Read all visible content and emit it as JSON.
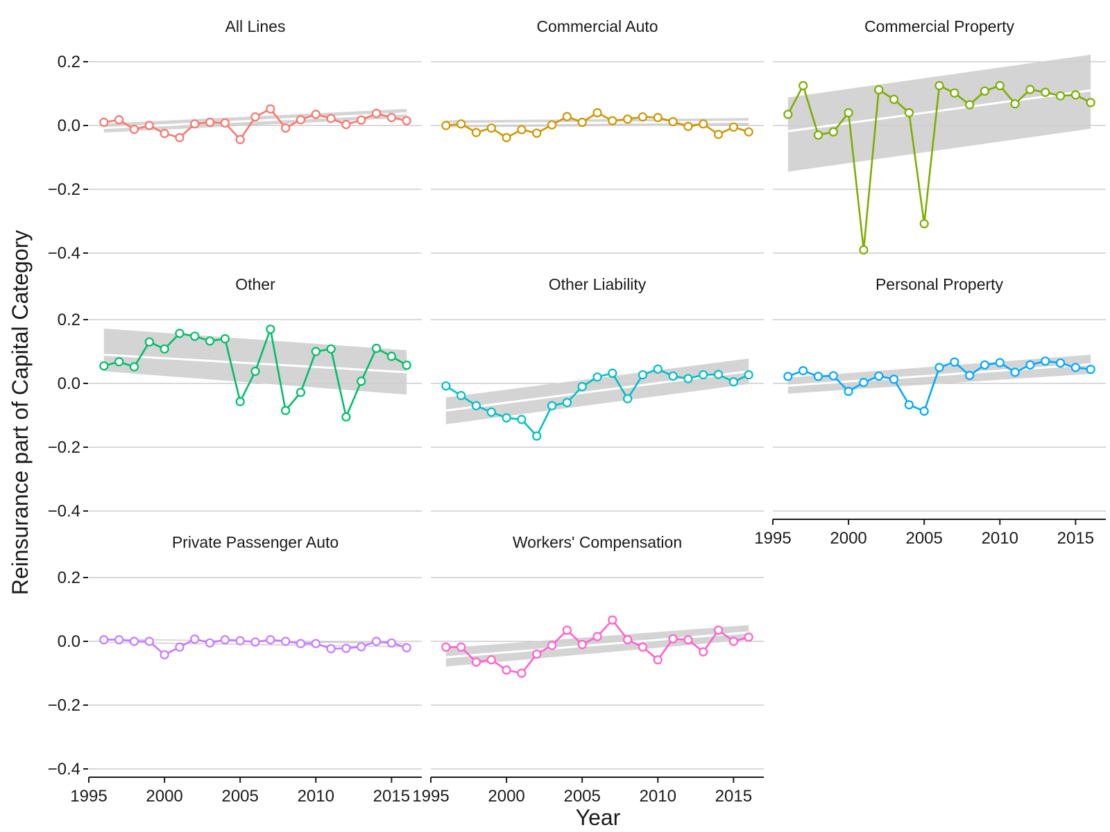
{
  "chart_data": {
    "type": "line",
    "ylabel": "Reinsurance part of Capital Category",
    "xlabel": "Year",
    "xlim": [
      1995,
      2017
    ],
    "ylim": [
      -0.4,
      0.2
    ],
    "x_ticks": [
      "1995",
      "2000",
      "2005",
      "2010",
      "2015"
    ],
    "y_ticks": [
      "0.2",
      "0.0",
      "−0.2",
      "−0.4"
    ],
    "y_tick_values": [
      0.2,
      0.0,
      -0.2,
      -0.4
    ],
    "grid": true,
    "legend": "none",
    "years": [
      1996,
      1997,
      1998,
      1999,
      2000,
      2001,
      2002,
      2003,
      2004,
      2005,
      2006,
      2007,
      2008,
      2009,
      2010,
      2011,
      2012,
      2013,
      2014,
      2015,
      2016
    ],
    "panels": [
      {
        "title": "All Lines",
        "color": "#F8766D",
        "values": [
          0.01,
          0.018,
          -0.012,
          0.0,
          -0.025,
          -0.038,
          0.005,
          0.01,
          0.008,
          -0.044,
          0.027,
          0.052,
          -0.008,
          0.018,
          0.035,
          0.022,
          0.003,
          0.017,
          0.038,
          0.025,
          0.015
        ],
        "trend": [
          -0.008,
          0.038
        ],
        "band_start": [
          -0.022,
          0.006
        ],
        "band_end": [
          0.024,
          0.052
        ]
      },
      {
        "title": "Commercial Auto",
        "color": "#CD9600",
        "values": [
          0.0,
          0.005,
          -0.022,
          -0.008,
          -0.038,
          -0.013,
          -0.024,
          0.002,
          0.028,
          0.01,
          0.04,
          0.015,
          0.02,
          0.027,
          0.025,
          0.012,
          -0.003,
          0.005,
          -0.028,
          -0.005,
          -0.02
        ],
        "trend": [
          0.005,
          0.012
        ],
        "band_start": [
          -0.006,
          0.016
        ],
        "band_end": [
          0.001,
          0.023
        ]
      },
      {
        "title": "Commercial Property",
        "color": "#7CAE00",
        "values": [
          0.035,
          0.125,
          -0.03,
          -0.02,
          0.04,
          -0.39,
          0.112,
          0.082,
          0.04,
          -0.308,
          0.125,
          0.102,
          0.065,
          0.108,
          0.125,
          0.068,
          0.113,
          0.104,
          0.093,
          0.096,
          0.072
        ],
        "trend": [
          -0.018,
          0.11
        ],
        "band_start": [
          -0.145,
          0.088
        ],
        "band_end": [
          -0.01,
          0.222
        ]
      },
      {
        "title": "Other",
        "color": "#00BE67",
        "values": [
          0.055,
          0.068,
          0.052,
          0.13,
          0.108,
          0.157,
          0.148,
          0.133,
          0.14,
          -0.057,
          0.038,
          0.17,
          -0.085,
          -0.028,
          0.1,
          0.108,
          -0.105,
          0.007,
          0.11,
          0.085,
          0.057
        ],
        "trend": [
          0.09,
          0.035
        ],
        "band_start": [
          0.038,
          0.172
        ],
        "band_end": [
          -0.035,
          0.104
        ]
      },
      {
        "title": "Other Liability",
        "color": "#00BFC4",
        "values": [
          -0.008,
          -0.038,
          -0.07,
          -0.09,
          -0.108,
          -0.113,
          -0.165,
          -0.07,
          -0.06,
          -0.01,
          0.02,
          0.032,
          -0.048,
          0.027,
          0.045,
          0.023,
          0.015,
          0.027,
          0.028,
          0.005,
          0.027
        ],
        "trend": [
          -0.085,
          0.038
        ],
        "band_start": [
          -0.128,
          -0.044
        ],
        "band_end": [
          -0.002,
          0.078
        ]
      },
      {
        "title": "Personal Property",
        "color": "#00A9FF",
        "values": [
          0.022,
          0.04,
          0.022,
          0.024,
          -0.025,
          0.003,
          0.023,
          0.013,
          -0.067,
          -0.087,
          0.05,
          0.067,
          0.025,
          0.058,
          0.065,
          0.035,
          0.058,
          0.07,
          0.064,
          0.05,
          0.044
        ],
        "trend": [
          -0.007,
          0.06
        ],
        "band_start": [
          -0.032,
          0.018
        ],
        "band_end": [
          0.03,
          0.09
        ]
      },
      {
        "title": "Private Passenger Auto",
        "color": "#C77CFF",
        "values": [
          0.005,
          0.005,
          0.0,
          0.0,
          -0.042,
          -0.018,
          0.007,
          -0.005,
          0.005,
          0.002,
          -0.002,
          0.005,
          0.0,
          -0.007,
          -0.007,
          -0.023,
          -0.022,
          -0.017,
          0.0,
          -0.005,
          -0.02
        ],
        "trend": [
          0.002,
          -0.012
        ],
        "band_start": [
          -0.005,
          0.009
        ],
        "band_end": [
          -0.019,
          -0.005
        ]
      },
      {
        "title": "Workers' Compensation",
        "color": "#FF61CC",
        "values": [
          -0.018,
          -0.018,
          -0.065,
          -0.058,
          -0.09,
          -0.1,
          -0.04,
          -0.013,
          0.035,
          -0.01,
          0.015,
          0.067,
          0.005,
          -0.018,
          -0.058,
          0.008,
          0.005,
          -0.033,
          0.035,
          0.0,
          0.013
        ],
        "trend": [
          -0.05,
          0.028
        ],
        "band_start": [
          -0.079,
          -0.021
        ],
        "band_end": [
          0.005,
          0.051
        ]
      }
    ]
  }
}
